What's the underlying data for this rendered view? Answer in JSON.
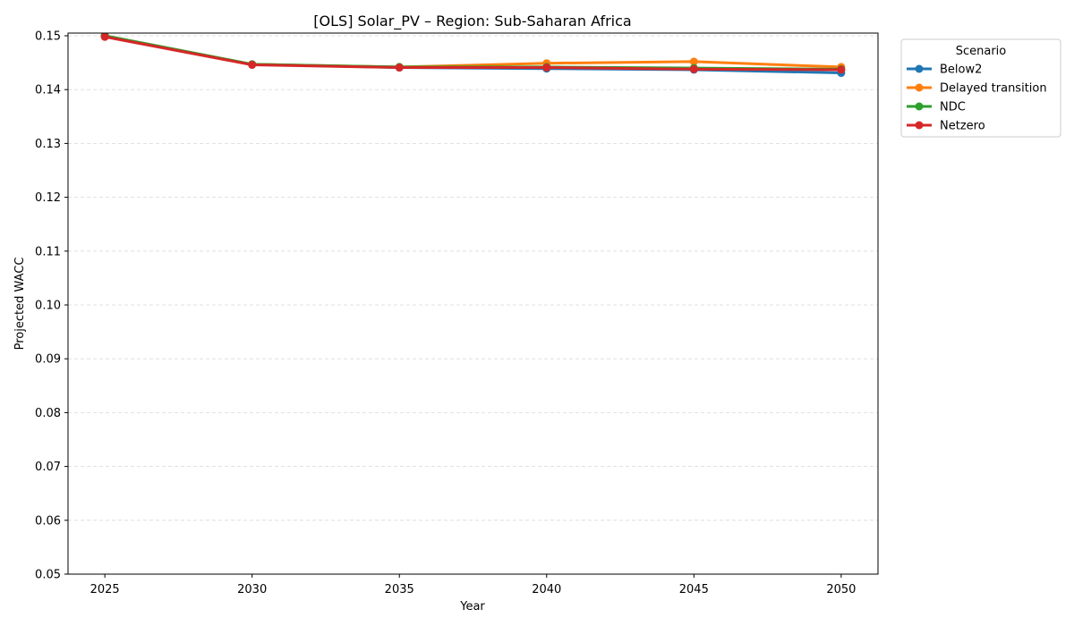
{
  "chart_data": {
    "type": "line",
    "title": "[OLS] Solar_PV – Region: Sub-Saharan Africa",
    "xlabel": "Year",
    "ylabel": "Projected WACC",
    "x": [
      2025,
      2030,
      2035,
      2040,
      2045,
      2050
    ],
    "xlim": [
      2023.75,
      2051.25
    ],
    "ylim": [
      0.05,
      0.1505
    ],
    "xticks": [
      "2025",
      "2030",
      "2035",
      "2040",
      "2045",
      "2050"
    ],
    "yticks": [
      "0.05",
      "0.06",
      "0.07",
      "0.08",
      "0.09",
      "0.10",
      "0.11",
      "0.12",
      "0.13",
      "0.14",
      "0.15"
    ],
    "grid": "y-dashed",
    "legend": {
      "title": "Scenario",
      "placement": "outside-top-right"
    },
    "series": [
      {
        "name": "Below2",
        "color": "#1f77b4",
        "values": [
          0.15,
          0.1447,
          0.1441,
          0.1439,
          0.1437,
          0.1431
        ]
      },
      {
        "name": "Delayed transition",
        "color": "#ff7f0e",
        "values": [
          0.15,
          0.1447,
          0.1442,
          0.1449,
          0.1452,
          0.1442
        ]
      },
      {
        "name": "NDC",
        "color": "#2ca02c",
        "values": [
          0.15,
          0.1447,
          0.1442,
          0.1442,
          0.144,
          0.1438
        ]
      },
      {
        "name": "Netzero",
        "color": "#d62728",
        "values": [
          0.1498,
          0.1446,
          0.1441,
          0.1441,
          0.1438,
          0.1437
        ]
      }
    ]
  }
}
